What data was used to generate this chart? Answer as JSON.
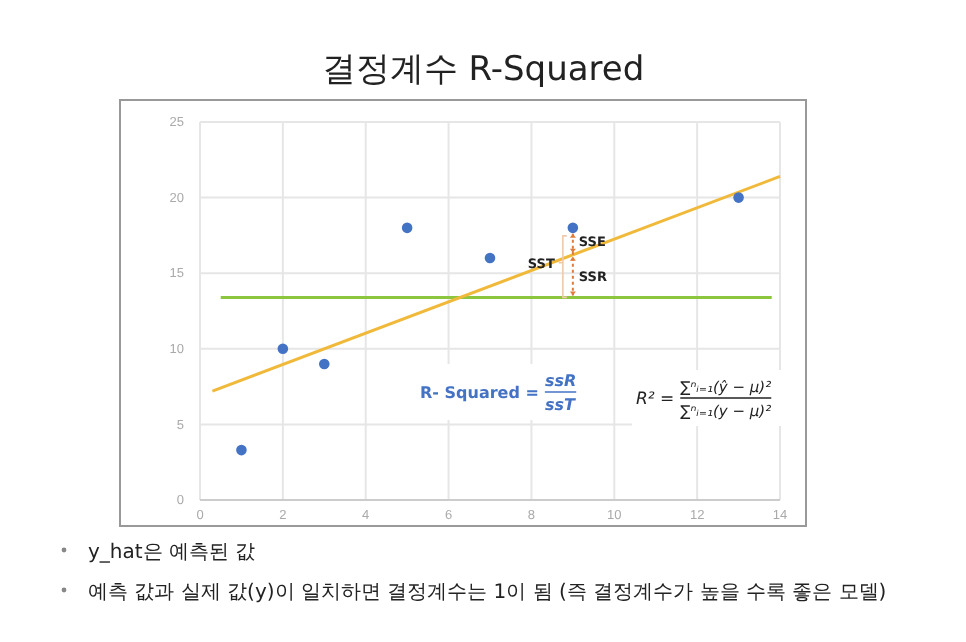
{
  "chart_data": {
    "type": "scatter",
    "title": "결정계수 R-Squared",
    "x": [
      1,
      2,
      3,
      5,
      7,
      9,
      13
    ],
    "series": [
      {
        "type": "scatter",
        "color": "#4472c4",
        "values": [
          3.3,
          10,
          9,
          18,
          16,
          18,
          20
        ]
      },
      {
        "type": "line",
        "color": "#f0b93a",
        "x": [
          0.3,
          14
        ],
        "values": [
          7.2,
          21.4
        ],
        "marker": "none"
      }
    ],
    "marker": "circle",
    "xlim": [
      0,
      14
    ],
    "xticks": [
      0,
      2,
      4,
      6,
      8,
      10,
      12,
      14
    ],
    "ylim": [
      0,
      25
    ],
    "yticks": [
      0,
      5,
      10,
      15,
      20,
      25
    ],
    "grid": true,
    "ref_lines": [
      {
        "axis": "y",
        "value": 13.4,
        "color": "#8cc63f"
      }
    ],
    "annotations": [
      "SSE",
      "SSR",
      "SST",
      "R- Squared =",
      "ssR",
      "ssT",
      "R² =",
      "∑ⁿᵢ₌₁(ŷ − μ)²",
      "∑ⁿᵢ₌₁(y − μ)²",
      "y_hat은 예측된 값",
      "예측 값과 실제 값(y)이 일치하면 결정계수는 1이 됨 (즉 결정계수가 높을 수록 좋은 모델)"
    ]
  }
}
